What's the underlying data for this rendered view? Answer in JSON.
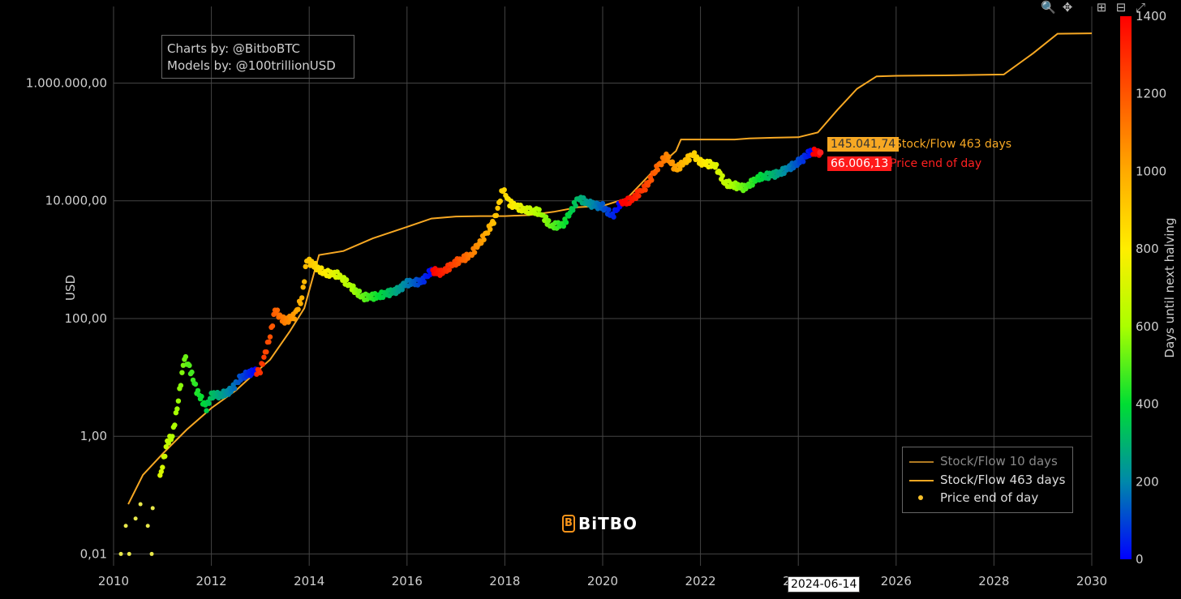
{
  "credits": {
    "line1": "Charts by: @BitboBTC",
    "line2": "Models by: @100trillionUSD"
  },
  "brand": "BiTBO",
  "legend": {
    "items": [
      {
        "label": "Stock/Flow 10 days",
        "color": "#b07a22",
        "kind": "line"
      },
      {
        "label": "Stock/Flow 463 days",
        "color": "#f7a823",
        "kind": "line"
      },
      {
        "label": "Price end of day",
        "color": "#f7c02a",
        "kind": "dot"
      }
    ]
  },
  "annotations": {
    "sf": {
      "value": "145.041,74",
      "label": "Stock/Flow 463 days",
      "color": "#f7a823"
    },
    "price": {
      "value": "66.006,13",
      "label": "Price end of day",
      "color": "#ff2020"
    }
  },
  "hover_date": "2024-06-14",
  "modebar": {
    "zoom": "zoom-icon",
    "pan": "pan-icon",
    "zoom_in": "zoom-in-icon",
    "zoom_out": "zoom-out-icon",
    "reset": "autoscale-icon"
  },
  "chart_data": {
    "type": "scatter",
    "xlabel": "",
    "ylabel": "USD",
    "yscale": "log",
    "xlim": [
      2010,
      2030
    ],
    "ylim": [
      0.0063,
      20000000
    ],
    "x_ticks": [
      "2010",
      "2012",
      "2014",
      "2016",
      "2018",
      "2020",
      "2022",
      "2024",
      "2026",
      "2028",
      "2030"
    ],
    "y_ticks": [
      {
        "value": 0.01,
        "label": "0,01"
      },
      {
        "value": 1,
        "label": "1,00"
      },
      {
        "value": 100,
        "label": "100,00"
      },
      {
        "value": 10000,
        "label": "10.000,00"
      },
      {
        "value": 1000000,
        "label": "1.000.000,00"
      }
    ],
    "grid": true,
    "legend_position": "bottom-right",
    "colorbar": {
      "title": "Days until next halving",
      "range": [
        0,
        1400
      ],
      "ticks": [
        0,
        200,
        400,
        600,
        800,
        1000,
        1200,
        1400
      ],
      "colors": [
        "#0000ff",
        "#0088aa",
        "#00dd33",
        "#aaff00",
        "#ffee00",
        "#ffaa00",
        "#ff5500",
        "#ff0000"
      ]
    },
    "halvings": [
      2012.91,
      2016.52,
      2020.36,
      2024.3,
      2028.3
    ],
    "series": [
      {
        "name": "Stock/Flow 463 days",
        "type": "line",
        "points": [
          [
            2010.3,
            0.07
          ],
          [
            2010.6,
            0.22
          ],
          [
            2011.0,
            0.5
          ],
          [
            2011.5,
            1.3
          ],
          [
            2012.0,
            3
          ],
          [
            2012.5,
            6
          ],
          [
            2012.9,
            12
          ],
          [
            2013.2,
            20
          ],
          [
            2013.6,
            60
          ],
          [
            2013.9,
            150
          ],
          [
            2014.2,
            1200
          ],
          [
            2014.7,
            1400
          ],
          [
            2015.3,
            2300
          ],
          [
            2016.0,
            3600
          ],
          [
            2016.5,
            5000
          ],
          [
            2017.0,
            5400
          ],
          [
            2017.5,
            5500
          ],
          [
            2018.0,
            5500
          ],
          [
            2018.5,
            5700
          ],
          [
            2019.0,
            6500
          ],
          [
            2019.5,
            7800
          ],
          [
            2020.0,
            8200
          ],
          [
            2020.5,
            11000
          ],
          [
            2021.0,
            30000
          ],
          [
            2021.5,
            70000
          ],
          [
            2021.6,
            110000
          ],
          [
            2022.0,
            110000
          ],
          [
            2022.7,
            110000
          ],
          [
            2023.0,
            115000
          ],
          [
            2023.5,
            118000
          ],
          [
            2024.0,
            120000
          ],
          [
            2024.4,
            145041.74
          ],
          [
            2024.8,
            350000
          ],
          [
            2025.2,
            800000
          ],
          [
            2025.6,
            1300000
          ],
          [
            2026.0,
            1330000
          ],
          [
            2027.0,
            1350000
          ],
          [
            2028.2,
            1400000
          ],
          [
            2028.8,
            3200000
          ],
          [
            2029.3,
            6900000
          ],
          [
            2030.0,
            7000000
          ]
        ]
      },
      {
        "name": "Price end of day",
        "type": "scatter",
        "points": [
          [
            2010.15,
            0.01
          ],
          [
            2010.32,
            0.01
          ],
          [
            2010.78,
            0.01
          ],
          [
            2010.25,
            0.03
          ],
          [
            2010.7,
            0.03
          ],
          [
            2010.45,
            0.04
          ],
          [
            2010.55,
            0.07
          ],
          [
            2010.8,
            0.06
          ],
          [
            2010.95,
            0.2
          ],
          [
            2011.1,
            0.8
          ],
          [
            2011.2,
            1.0
          ],
          [
            2011.3,
            3
          ],
          [
            2011.45,
            22
          ],
          [
            2011.55,
            15
          ],
          [
            2011.7,
            6
          ],
          [
            2011.9,
            3
          ],
          [
            2012.0,
            5
          ],
          [
            2012.2,
            5
          ],
          [
            2012.4,
            6
          ],
          [
            2012.6,
            10
          ],
          [
            2012.8,
            12
          ],
          [
            2013.0,
            13
          ],
          [
            2013.2,
            50
          ],
          [
            2013.3,
            140
          ],
          [
            2013.4,
            110
          ],
          [
            2013.5,
            90
          ],
          [
            2013.7,
            110
          ],
          [
            2013.85,
            220
          ],
          [
            2013.95,
            1000
          ],
          [
            2014.1,
            800
          ],
          [
            2014.3,
            600
          ],
          [
            2014.6,
            550
          ],
          [
            2014.9,
            320
          ],
          [
            2015.1,
            230
          ],
          [
            2015.4,
            240
          ],
          [
            2015.8,
            300
          ],
          [
            2016.0,
            400
          ],
          [
            2016.3,
            420
          ],
          [
            2016.5,
            650
          ],
          [
            2016.7,
            600
          ],
          [
            2017.0,
            900
          ],
          [
            2017.3,
            1200
          ],
          [
            2017.6,
            2600
          ],
          [
            2017.8,
            5000
          ],
          [
            2017.96,
            16000
          ],
          [
            2018.1,
            9000
          ],
          [
            2018.4,
            7000
          ],
          [
            2018.7,
            6500
          ],
          [
            2018.95,
            3700
          ],
          [
            2019.2,
            4000
          ],
          [
            2019.5,
            11000
          ],
          [
            2019.8,
            8500
          ],
          [
            2020.0,
            8000
          ],
          [
            2020.2,
            5500
          ],
          [
            2020.35,
            8800
          ],
          [
            2020.6,
            10500
          ],
          [
            2020.9,
            18000
          ],
          [
            2021.1,
            35000
          ],
          [
            2021.3,
            58000
          ],
          [
            2021.5,
            34000
          ],
          [
            2021.85,
            62000
          ],
          [
            2022.0,
            45000
          ],
          [
            2022.3,
            40000
          ],
          [
            2022.5,
            20000
          ],
          [
            2022.9,
            16500
          ],
          [
            2023.2,
            25000
          ],
          [
            2023.6,
            29000
          ],
          [
            2023.9,
            40000
          ],
          [
            2024.1,
            52000
          ],
          [
            2024.25,
            68000
          ],
          [
            2024.45,
            66006.13
          ]
        ]
      }
    ]
  }
}
